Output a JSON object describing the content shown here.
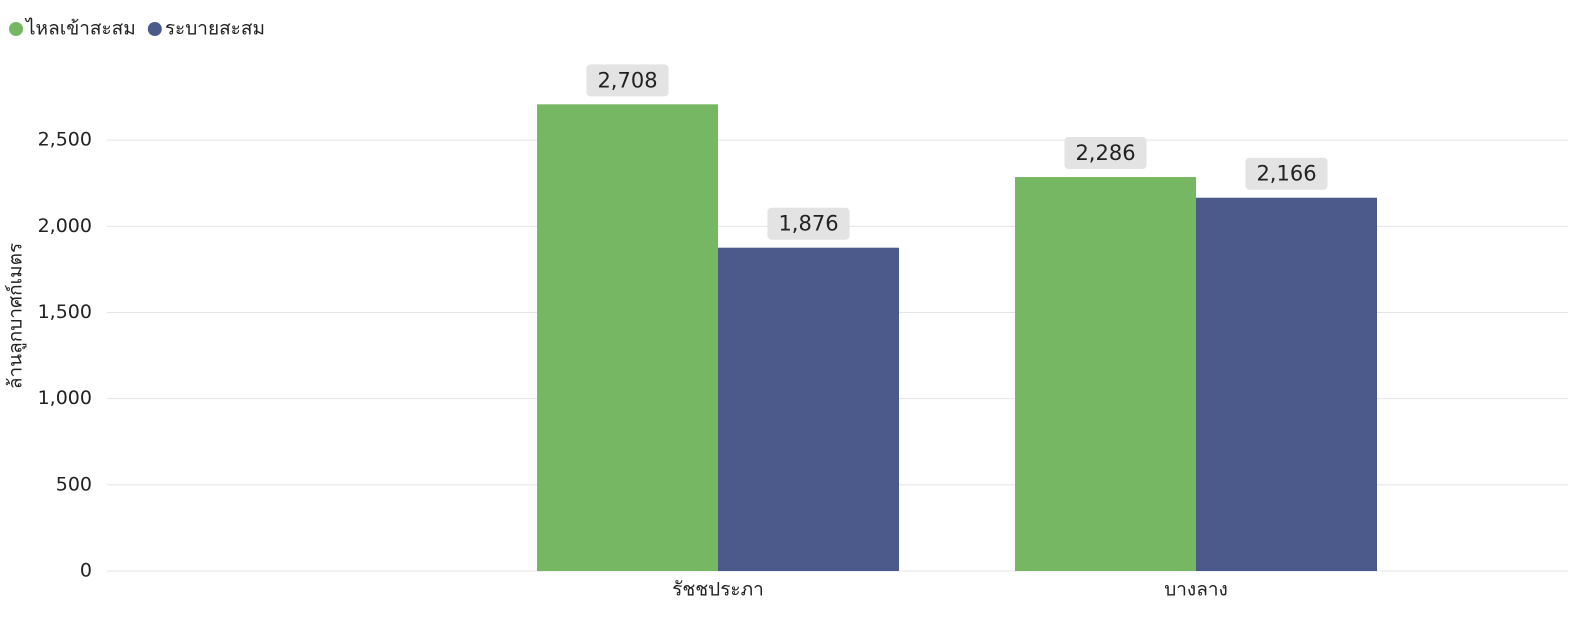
{
  "chart_data": {
    "type": "bar",
    "y_label": "ล้านลูกบาศก์เมตร",
    "categories": [
      "รัชชประภา",
      "บางลาง"
    ],
    "series": [
      {
        "name": "ไหลเข้าสะสม",
        "color": "#75b762",
        "values": [
          2708,
          2286
        ],
        "value_labels": [
          "2,708",
          "2,286"
        ]
      },
      {
        "name": "ระบายสะสม",
        "color": "#4b5a8a",
        "values": [
          1876,
          2166
        ],
        "value_labels": [
          "1,876",
          "2,166"
        ]
      }
    ],
    "ylim": [
      0,
      3000
    ],
    "yticks": [
      0,
      {
        "value": 500,
        "label": "500"
      },
      {
        "value": 1000,
        "label": "1,000"
      },
      {
        "value": 1500,
        "label": "1,500"
      },
      {
        "value": 2000,
        "label": "2,000"
      },
      {
        "value": 2500,
        "label": "2,500"
      }
    ],
    "grid": true,
    "legend": "top-left"
  }
}
